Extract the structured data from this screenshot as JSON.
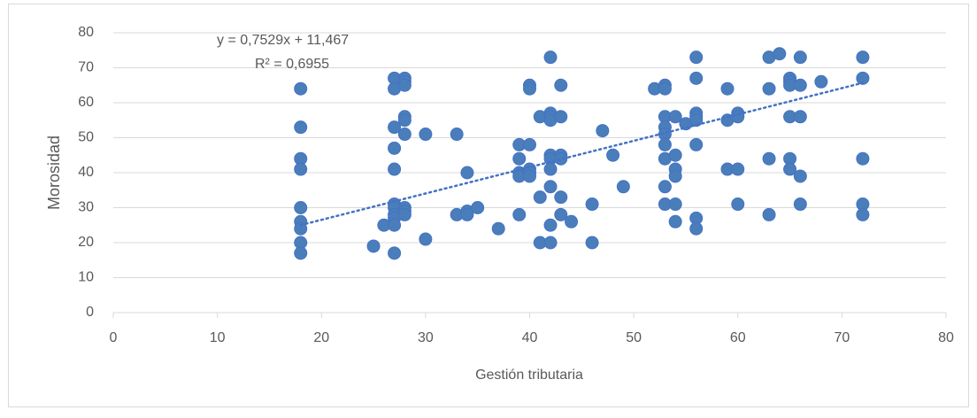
{
  "chart_data": {
    "type": "scatter",
    "x_label": "Gestión tributaria",
    "y_label": "Morosidad",
    "x": [
      18,
      18,
      18,
      18,
      18,
      18,
      18,
      18,
      18,
      25,
      26,
      27,
      27,
      27,
      27,
      27,
      27,
      27,
      27,
      27,
      27,
      27,
      28,
      28,
      28,
      28,
      28,
      28,
      28,
      28,
      28,
      30,
      30,
      33,
      33,
      34,
      34,
      34,
      35,
      37,
      39,
      39,
      39,
      39,
      39,
      40,
      40,
      40,
      40,
      40,
      40,
      41,
      41,
      41,
      42,
      42,
      42,
      42,
      42,
      42,
      42,
      42,
      42,
      42,
      43,
      43,
      43,
      43,
      43,
      43,
      44,
      46,
      46,
      47,
      48,
      49,
      52,
      53,
      53,
      53,
      53,
      53,
      53,
      53,
      53,
      53,
      54,
      54,
      54,
      54,
      54,
      54,
      55,
      56,
      56,
      56,
      56,
      56,
      56,
      56,
      56,
      59,
      59,
      59,
      60,
      60,
      60,
      60,
      63,
      63,
      63,
      63,
      64,
      65,
      65,
      65,
      65,
      65,
      65,
      66,
      66,
      66,
      66,
      66,
      68,
      72,
      72,
      72,
      72,
      72
    ],
    "y": [
      64,
      53,
      44,
      41,
      30,
      26,
      24,
      20,
      17,
      19,
      25,
      67,
      64,
      53,
      47,
      41,
      31,
      30,
      28,
      27,
      25,
      17,
      67,
      66,
      65,
      56,
      55,
      51,
      30,
      29,
      28,
      51,
      21,
      51,
      28,
      40,
      29,
      28,
      30,
      24,
      48,
      44,
      40,
      39,
      28,
      65,
      64,
      48,
      41,
      40,
      39,
      56,
      33,
      20,
      73,
      57,
      56,
      55,
      45,
      44,
      41,
      36,
      25,
      20,
      65,
      56,
      45,
      44,
      33,
      28,
      26,
      31,
      20,
      52,
      45,
      36,
      64,
      65,
      64,
      56,
      53,
      51,
      48,
      44,
      36,
      31,
      56,
      45,
      41,
      39,
      31,
      26,
      54,
      73,
      67,
      57,
      56,
      55,
      48,
      27,
      24,
      64,
      55,
      41,
      57,
      56,
      41,
      31,
      73,
      64,
      44,
      28,
      74,
      67,
      66,
      65,
      56,
      44,
      41,
      73,
      65,
      56,
      39,
      31,
      66,
      73,
      67,
      44,
      31,
      28
    ],
    "color": "#4a7ebb",
    "xlim": [
      0,
      80
    ],
    "xticks": [
      0,
      10,
      20,
      30,
      40,
      50,
      60,
      70,
      80
    ],
    "ylim": [
      0,
      80
    ],
    "yticks": [
      0,
      10,
      20,
      30,
      40,
      50,
      60,
      70,
      80
    ],
    "grid": true,
    "trendline": {
      "slope": 0.7529,
      "intercept": 11.467,
      "label": "y = 0,7529x + 11,467",
      "r2": 0.6955,
      "r2_label": "R² = 0,6955",
      "color": "#4472c4"
    }
  }
}
